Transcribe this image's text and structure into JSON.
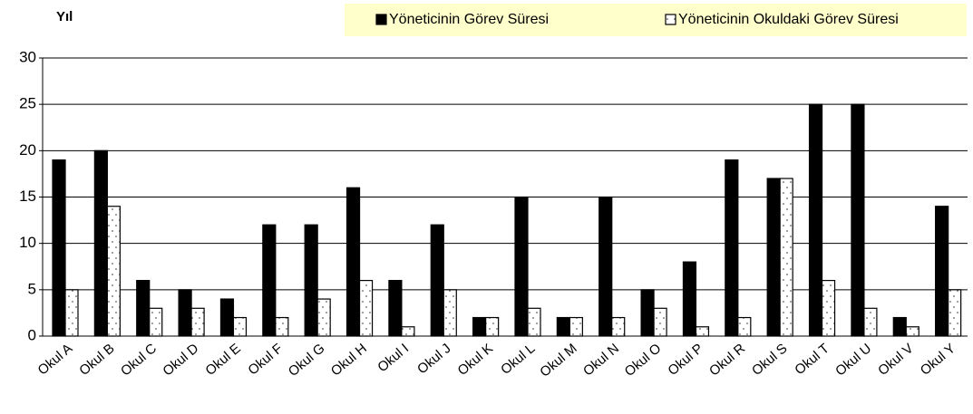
{
  "chart_data": {
    "type": "bar",
    "y_label": "Yıl",
    "categories": [
      "Okul A",
      "Okul B",
      "Okul C",
      "Okul D",
      "Okul E",
      "Okul F",
      "Okul G",
      "Okul H",
      "Okul I",
      "Okul J",
      "Okul K",
      "Okul L",
      "Okul M",
      "Okul N",
      "Okul O",
      "Okul P",
      "Okul R",
      "Okul S",
      "Okul T",
      "Okul U",
      "Okul V",
      "Okul Y"
    ],
    "series": [
      {
        "name": "Yöneticinin Görev Süresi",
        "color": "#000000",
        "values": [
          19,
          20,
          6,
          5,
          4,
          12,
          12,
          16,
          6,
          12,
          2,
          15,
          2,
          15,
          5,
          8,
          19,
          17,
          25,
          25,
          2,
          14
        ]
      },
      {
        "name": "Yöneticinin Okuldaki Görev Süresi",
        "color": "#ffffff",
        "values": [
          5,
          14,
          3,
          3,
          2,
          2,
          4,
          6,
          1,
          5,
          2,
          3,
          2,
          2,
          3,
          1,
          2,
          17,
          6,
          3,
          1,
          5
        ]
      }
    ],
    "ylim": [
      0,
      30
    ],
    "yticks": [
      0,
      5,
      10,
      15,
      20,
      25,
      30
    ],
    "grid": true,
    "legend": "top-right"
  }
}
